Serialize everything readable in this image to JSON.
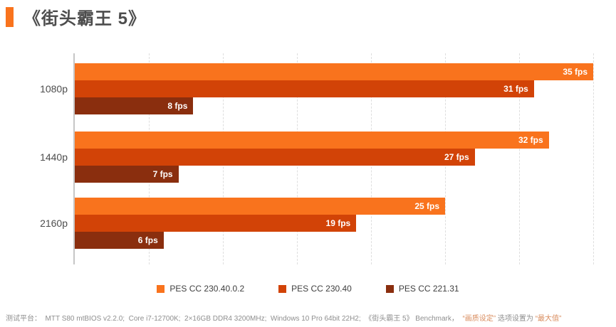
{
  "title": {
    "text": "《街头霸王 5》"
  },
  "chart_data": {
    "type": "bar",
    "orientation": "horizontal",
    "title": "《街头霸王 5》",
    "categories": [
      "1080p",
      "1440p",
      "2160p"
    ],
    "series": [
      {
        "name": "PES CC 230.40.0.2",
        "color": "#F9731D",
        "values": [
          35,
          32,
          25
        ]
      },
      {
        "name": "PES CC 230.40",
        "color": "#D24307",
        "values": [
          31,
          27,
          19
        ]
      },
      {
        "name": "PES CC 221.31",
        "color": "#8A2E0E",
        "values": [
          8,
          7,
          6
        ]
      }
    ],
    "value_suffix": " fps",
    "xlabel": "",
    "ylabel": "",
    "xlim": [
      0,
      35.43
    ],
    "gridline_step": 5,
    "grid": true,
    "legend_position": "bottom"
  },
  "footer": {
    "color_normal": "#8E8E8E",
    "color_highlight": "#D98C5E",
    "segments": [
      {
        "text": "测试平台：  MTT S80 mtBIOS v2.2.0;  Core i7-12700K;  2×16GB DDR4 3200MHz;  Windows 10 Pro 64bit 22H2;  《街头霸王 5》 Benchmark，  ",
        "highlight": false
      },
      {
        "text": "“画质设定”",
        "highlight": true
      },
      {
        "text": " 选项设置为 ",
        "highlight": false
      },
      {
        "text": "“最大值”",
        "highlight": true
      }
    ]
  },
  "colors": {
    "accent": "#F9731D",
    "axis_line": "#C6C6C6",
    "gridline": "#DEDEDE",
    "title_text": "#4D4D4D"
  }
}
